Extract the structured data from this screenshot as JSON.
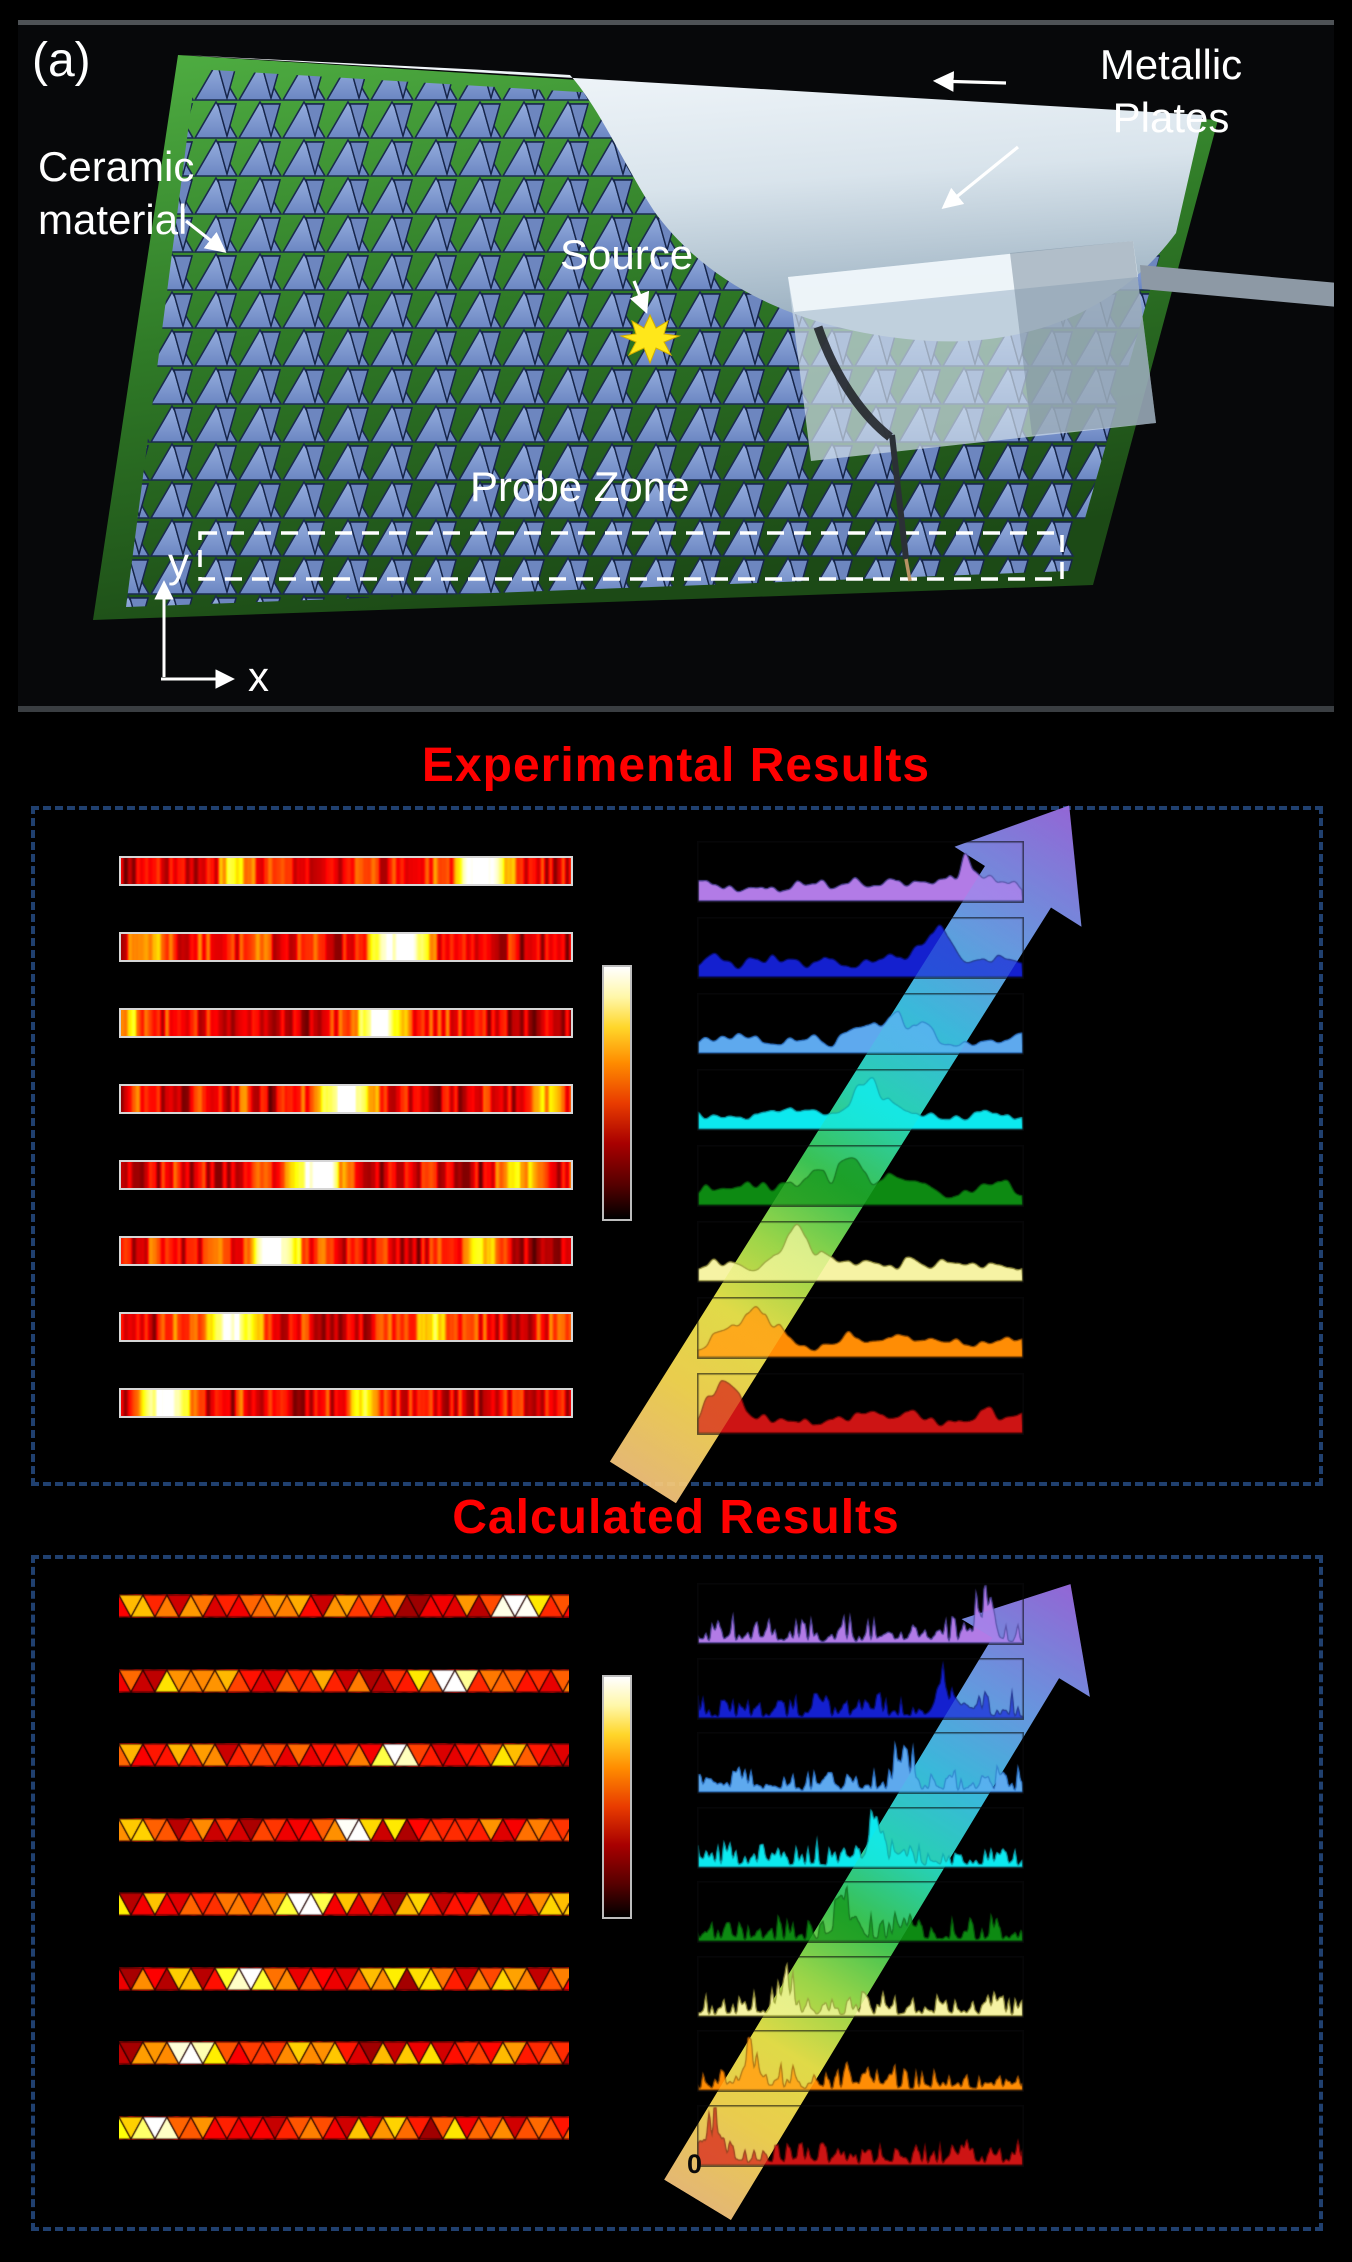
{
  "panel_a": {
    "label": "(a)",
    "ceramic_label": "Ceramic\nmaterial",
    "source_label": "Source",
    "plates_label": "Metallic\nPlates",
    "probe_zone_label": "Probe Zone",
    "x_label": "x",
    "y_label": "y",
    "scene": {
      "board_color": "#3f9a38",
      "lattice_color": "#8aa3d8",
      "plate_color": "#e8f0f6",
      "source_star_color": "#ffe71a"
    }
  },
  "experimental": {
    "title": "Experimental Results",
    "colormap": "hot",
    "strips": [
      {
        "seed": 3,
        "hotspot": 0.8
      },
      {
        "seed": 7,
        "hotspot": 0.62
      },
      {
        "seed": 12,
        "hotspot": 0.57
      },
      {
        "seed": 19,
        "hotspot": 0.5
      },
      {
        "seed": 23,
        "hotspot": 0.44
      },
      {
        "seed": 31,
        "hotspot": 0.34
      },
      {
        "seed": 41,
        "hotspot": 0.24
      },
      {
        "seed": 47,
        "hotspot": 0.1
      }
    ],
    "waves": [
      {
        "name": "violet",
        "fill": "#b27be6",
        "stroke": "#4a3f8f",
        "peak": 0.82,
        "amp": 30,
        "sigma": 0.05,
        "seed": 5
      },
      {
        "name": "blue",
        "fill": "#1420cf",
        "stroke": "#070d6e",
        "peak": 0.72,
        "amp": 38,
        "sigma": 0.045,
        "seed": 9
      },
      {
        "name": "skyblue",
        "fill": "#5ea9ee",
        "stroke": "#2b6fc0",
        "peak": 0.62,
        "amp": 36,
        "sigma": 0.05,
        "seed": 14
      },
      {
        "name": "cyan",
        "fill": "#0ce9ef",
        "stroke": "#0b9aa6",
        "peak": 0.53,
        "amp": 34,
        "sigma": 0.05,
        "seed": 21
      },
      {
        "name": "green",
        "fill": "#0d8a12",
        "stroke": "#06520a",
        "peak": 0.42,
        "amp": 26,
        "sigma": 0.11,
        "seed": 28
      },
      {
        "name": "yellow",
        "fill": "#f6f3a4",
        "stroke": "#8f8a3a",
        "peak": 0.31,
        "amp": 36,
        "sigma": 0.05,
        "seed": 33
      },
      {
        "name": "orange",
        "fill": "#ff8d05",
        "stroke": "#8f4a00",
        "peak": 0.18,
        "amp": 38,
        "sigma": 0.05,
        "seed": 39
      },
      {
        "name": "red",
        "fill": "#cd1414",
        "stroke": "#6e0606",
        "peak": 0.08,
        "amp": 30,
        "sigma": 0.05,
        "seed": 45
      }
    ]
  },
  "calculated": {
    "title": "Calculated Results",
    "colormap": "hot",
    "origin_label": "0",
    "strips": [
      {
        "seed": 52,
        "hotspot": 0.88
      },
      {
        "seed": 57,
        "hotspot": 0.74
      },
      {
        "seed": 61,
        "hotspot": 0.62
      },
      {
        "seed": 66,
        "hotspot": 0.52
      },
      {
        "seed": 72,
        "hotspot": 0.42
      },
      {
        "seed": 78,
        "hotspot": 0.28
      },
      {
        "seed": 83,
        "hotspot": 0.17
      },
      {
        "seed": 91,
        "hotspot": 0.07
      }
    ],
    "waves": [
      {
        "name": "violet",
        "fill": "#b27be6",
        "stroke": "#4a3f8f",
        "peak": 0.88,
        "amp": 46,
        "sigma": 0.022,
        "seed": 104
      },
      {
        "name": "blue",
        "fill": "#1420cf",
        "stroke": "#070d6e",
        "peak": 0.75,
        "amp": 46,
        "sigma": 0.022,
        "seed": 109
      },
      {
        "name": "skyblue",
        "fill": "#5ea9ee",
        "stroke": "#2b6fc0",
        "peak": 0.63,
        "amp": 42,
        "sigma": 0.022,
        "seed": 117
      },
      {
        "name": "cyan",
        "fill": "#0ce9ef",
        "stroke": "#0b9aa6",
        "peak": 0.54,
        "amp": 40,
        "sigma": 0.022,
        "seed": 122
      },
      {
        "name": "green",
        "fill": "#0d8a12",
        "stroke": "#06520a",
        "peak": 0.45,
        "amp": 36,
        "sigma": 0.03,
        "seed": 131
      },
      {
        "name": "yellow",
        "fill": "#f6f3a4",
        "stroke": "#8f8a3a",
        "peak": 0.27,
        "amp": 42,
        "sigma": 0.022,
        "seed": 137
      },
      {
        "name": "orange",
        "fill": "#ff8d05",
        "stroke": "#8f4a00",
        "peak": 0.16,
        "amp": 40,
        "sigma": 0.022,
        "seed": 146
      },
      {
        "name": "red",
        "fill": "#cd1414",
        "stroke": "#6e0606",
        "peak": 0.05,
        "amp": 50,
        "sigma": 0.022,
        "seed": 152
      }
    ]
  },
  "colorbar_stops": [
    {
      "c": "#000000",
      "p": 0
    },
    {
      "c": "#580000",
      "p": 14
    },
    {
      "c": "#a80000",
      "p": 30
    },
    {
      "c": "#e93c00",
      "p": 46
    },
    {
      "c": "#ff8c00",
      "p": 62
    },
    {
      "c": "#ffd62a",
      "p": 76
    },
    {
      "c": "#fff7a8",
      "p": 88
    },
    {
      "c": "#ffffff",
      "p": 100
    }
  ],
  "band_stops": [
    {
      "c": "#f9c87e",
      "p": 0
    },
    {
      "c": "#ffdf54",
      "p": 13
    },
    {
      "c": "#f4ee4e",
      "p": 24
    },
    {
      "c": "#a8e84f",
      "p": 34
    },
    {
      "c": "#3fd35a",
      "p": 45
    },
    {
      "c": "#2be3c3",
      "p": 56
    },
    {
      "c": "#3fc9ee",
      "p": 68
    },
    {
      "c": "#6ea6f2",
      "p": 81
    },
    {
      "c": "#a06fe8",
      "p": 100
    }
  ],
  "style": {
    "title_color": "#ff0000",
    "box_dash_color": "#20406f",
    "strip_border_color": "#d6d6d6"
  }
}
